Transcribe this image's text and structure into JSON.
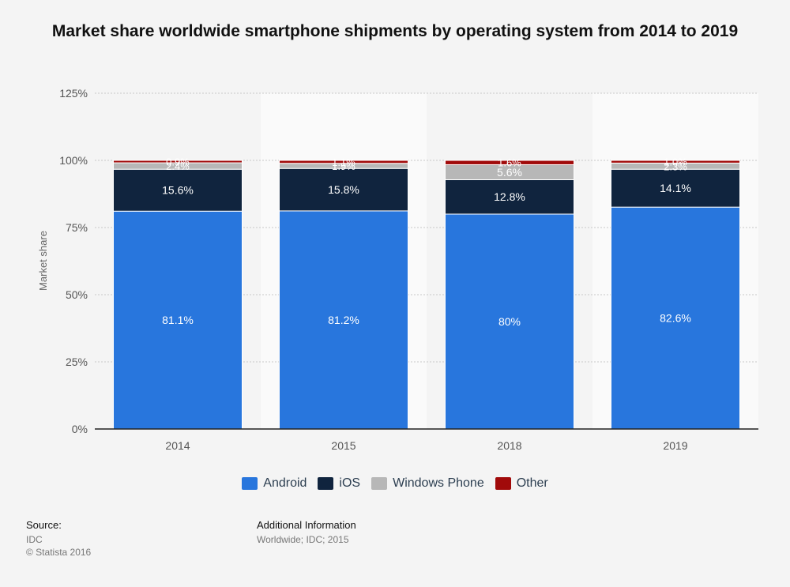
{
  "chart_data": {
    "type": "bar",
    "stacked": true,
    "title": "Market share worldwide smartphone shipments by operating system from 2014 to 2019",
    "ylabel": "Market share",
    "ylim": [
      0,
      125
    ],
    "yticks": [
      "0%",
      "25%",
      "50%",
      "75%",
      "100%",
      "125%"
    ],
    "ytick_values": [
      0,
      25,
      50,
      75,
      100,
      125
    ],
    "categories": [
      "2014",
      "2015",
      "2018",
      "2019"
    ],
    "grid": true,
    "legend_position": "bottom",
    "series": [
      {
        "name": "Android",
        "color": "#2876dd",
        "values": [
          81.1,
          81.2,
          80,
          82.6
        ],
        "labels": [
          "81.1%",
          "81.2%",
          "80%",
          "82.6%"
        ]
      },
      {
        "name": "iOS",
        "color": "#10243e",
        "values": [
          15.6,
          15.8,
          12.8,
          14.1
        ],
        "labels": [
          "15.6%",
          "15.8%",
          "12.8%",
          "14.1%"
        ]
      },
      {
        "name": "Windows Phone",
        "color": "#b7b7b7",
        "values": [
          2.4,
          1.9,
          5.6,
          2.3
        ],
        "labels": [
          "2.4%",
          "1.9%",
          "5.6%",
          "2.3%"
        ]
      },
      {
        "name": "Other",
        "color": "#a10a0a",
        "values": [
          0.9,
          1.1,
          1.6,
          1.0
        ],
        "labels": [
          "0.9%",
          "1.1%",
          "1.6%",
          "1.0%"
        ]
      }
    ]
  },
  "footer": {
    "source_heading": "Source:",
    "source_lines": [
      "IDC",
      "© Statista 2016"
    ],
    "info_heading": "Additional Information",
    "info_line": "Worldwide; IDC; 2015"
  }
}
